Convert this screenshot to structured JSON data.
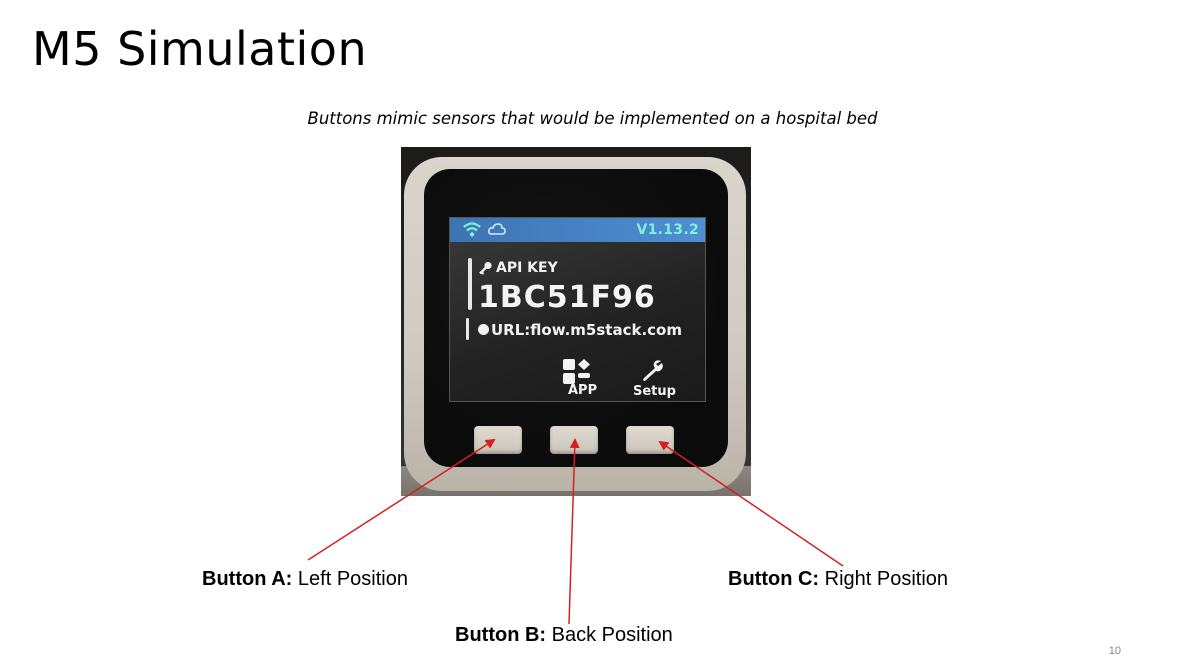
{
  "slide": {
    "title": "M5 Simulation",
    "subtitle": "Buttons mimic sensors that would be implemented on a hospital bed",
    "page_number": "10"
  },
  "device_screen": {
    "version": "V1.13.2",
    "api_label": "API KEY",
    "api_key": "1BC51F96",
    "url": "URL:flow.m5stack.com",
    "app_label": "APP",
    "setup_label": "Setup"
  },
  "callouts": [
    {
      "name": "Button A:",
      "desc": " Left Position"
    },
    {
      "name": "Button B:",
      "desc": " Back Position"
    },
    {
      "name": "Button C:",
      "desc": " Right Position"
    }
  ],
  "colors": {
    "arrow": "#d42020",
    "status_bar": "#4a86c8",
    "version_text": "#7ef2d7"
  },
  "icons": [
    "wifi-icon",
    "cloud-icon",
    "key-icon",
    "app-icon",
    "wrench-icon"
  ]
}
